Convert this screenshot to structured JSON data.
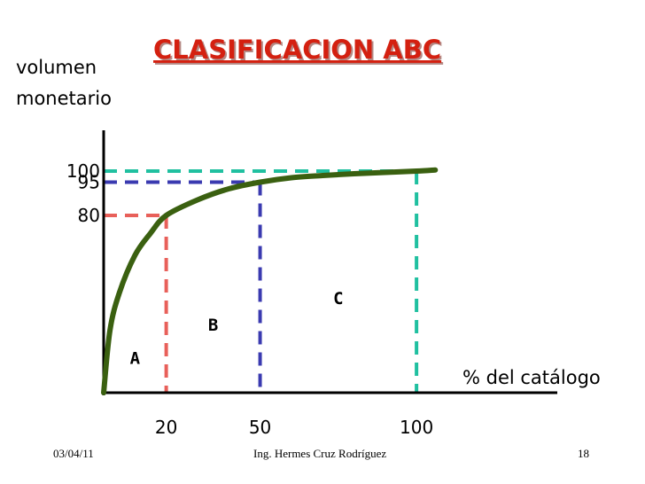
{
  "chart_data": {
    "type": "line",
    "title": "CLASIFICACION ABC",
    "ylabel": [
      "volumen",
      "monetario"
    ],
    "xlabel": "% del catálogo",
    "x": [
      0,
      2,
      5,
      10,
      15,
      20,
      30,
      40,
      50,
      60,
      70,
      80,
      90,
      100,
      106
    ],
    "y": [
      0,
      28,
      45,
      62,
      72,
      80,
      87,
      92,
      95,
      97,
      98,
      98.8,
      99.4,
      100,
      100.5
    ],
    "xlim": [
      0,
      145
    ],
    "ylim": [
      0,
      100
    ],
    "x_ticks": [
      {
        "value": 20,
        "label": "20"
      },
      {
        "value": 50,
        "label": "50"
      },
      {
        "value": 100,
        "label": "100"
      }
    ],
    "y_ticks": [
      {
        "value": 100,
        "label": "100"
      },
      {
        "value": 95,
        "label": "95"
      },
      {
        "value": 80,
        "label": "80"
      }
    ],
    "reference_lines": [
      {
        "x": 20,
        "y": 80,
        "color": "#e8605a"
      },
      {
        "x": 50,
        "y": 95,
        "color": "#3a3ab0"
      },
      {
        "x": 100,
        "y": 100,
        "color": "#20c0a0"
      }
    ],
    "zones": [
      {
        "label": "A",
        "x": 10,
        "y": 13
      },
      {
        "label": "B",
        "x": 35,
        "y": 28
      },
      {
        "label": "C",
        "x": 75,
        "y": 40
      }
    ],
    "line_color": "#3a6010",
    "grid": false
  },
  "footer": {
    "date": "03/04/11",
    "author": "Ing. Hermes  Cruz Rodríguez",
    "page": "18"
  }
}
